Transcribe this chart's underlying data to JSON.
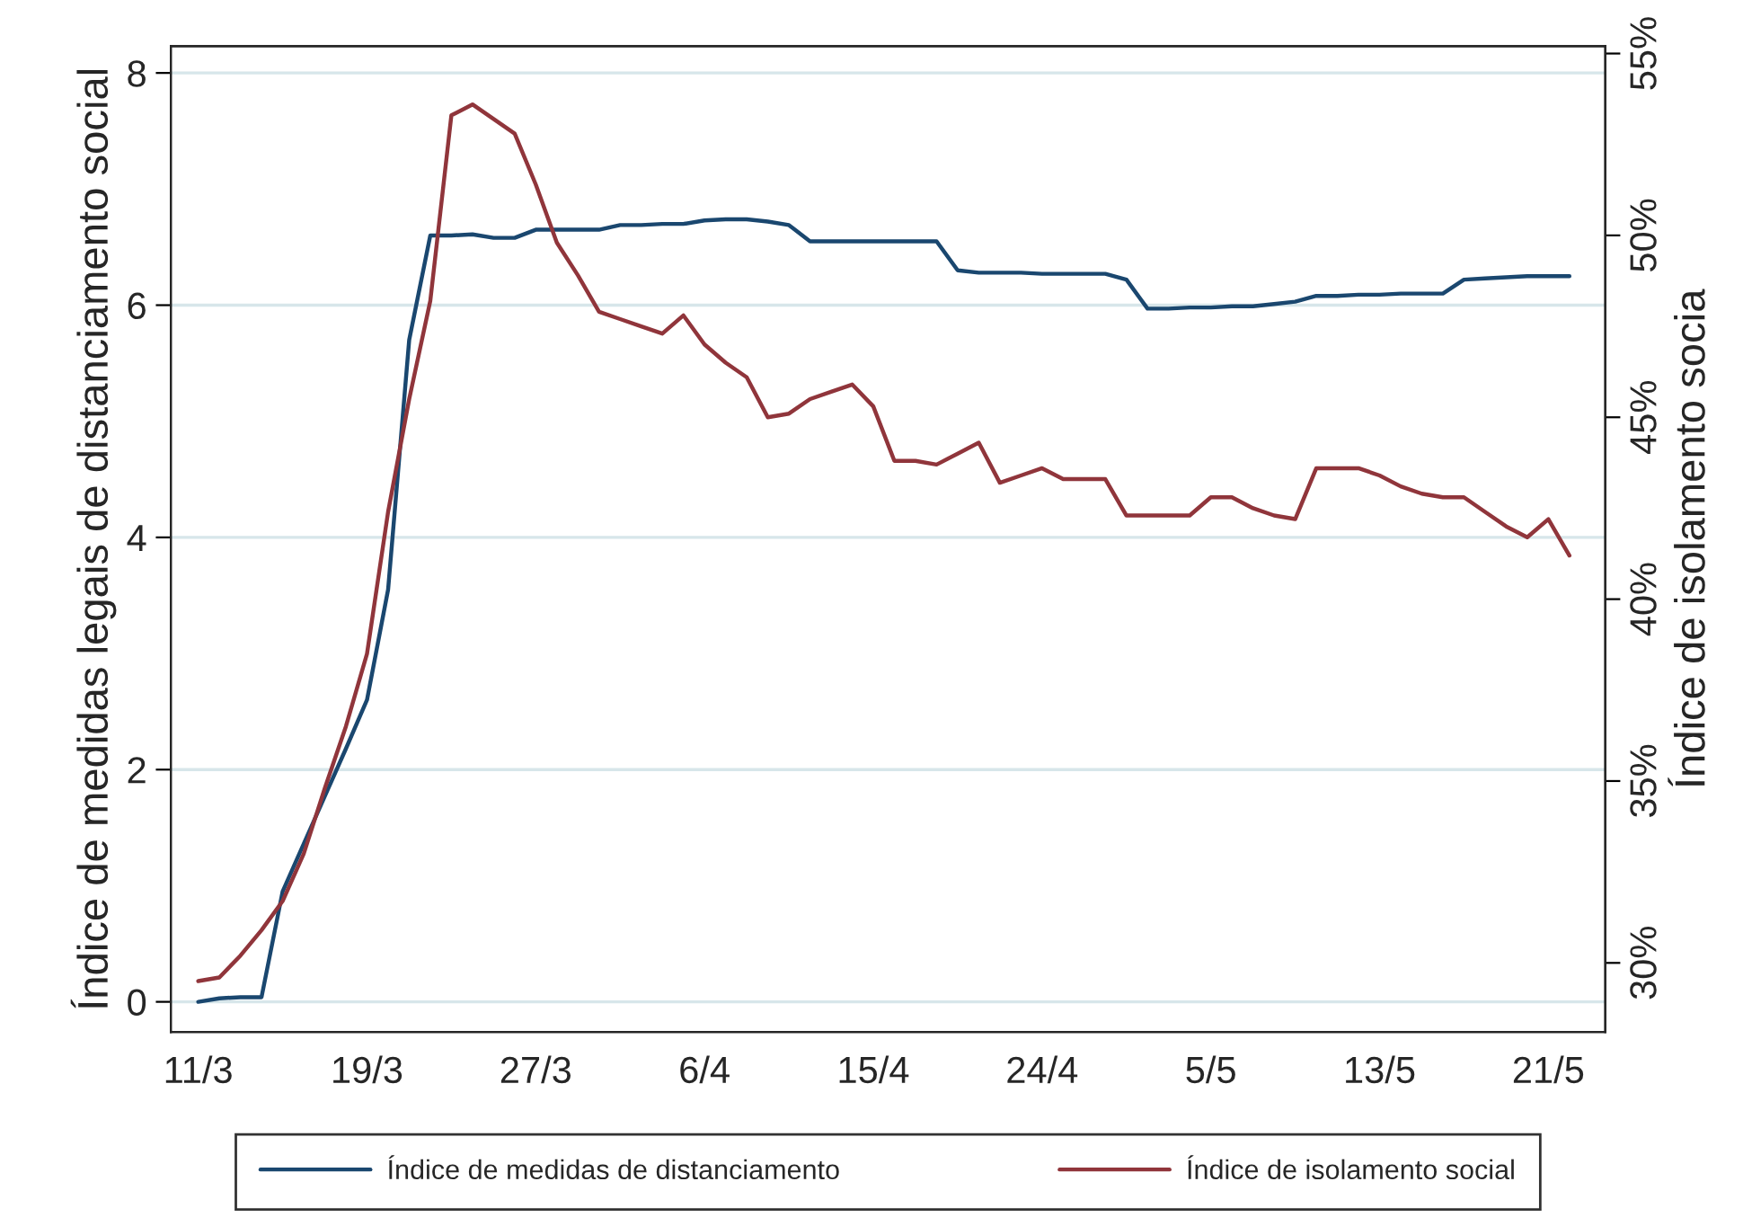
{
  "chart_data": {
    "type": "line",
    "ylabel": "Índice de medidas legais de distanciamento social",
    "y2label": "Índice de isolamento socia",
    "categories": [
      "11/3",
      null,
      null,
      null,
      null,
      null,
      null,
      null,
      "19/3",
      null,
      null,
      null,
      null,
      null,
      null,
      null,
      "27/3",
      null,
      null,
      null,
      null,
      null,
      null,
      null,
      "6/4",
      null,
      null,
      null,
      null,
      null,
      null,
      null,
      "15/4",
      null,
      null,
      null,
      null,
      null,
      null,
      null,
      "24/4",
      null,
      null,
      null,
      null,
      null,
      null,
      null,
      "5/5",
      null,
      null,
      null,
      null,
      null,
      null,
      null,
      "13/5",
      null,
      null,
      null,
      null,
      null,
      null,
      null,
      "21/5",
      null
    ],
    "ylim": [
      -0.26,
      8.23
    ],
    "yticks": [
      0,
      2,
      4,
      6,
      8
    ],
    "y2lim": [
      28.1,
      55.2
    ],
    "y2ticks": [
      {
        "value": 30,
        "label": "30%"
      },
      {
        "value": 35,
        "label": "35%"
      },
      {
        "value": 40,
        "label": "40%"
      },
      {
        "value": 45,
        "label": "45%"
      },
      {
        "value": 50,
        "label": "50%"
      },
      {
        "value": 55,
        "label": "55%"
      }
    ],
    "grid": "y",
    "legend": "bottom",
    "line_style": "solid",
    "marker": "none",
    "series": [
      {
        "name": "Índice de medidas de distanciamento",
        "color": "#1a476f",
        "values": [
          0,
          0.03,
          0.04,
          0.04,
          0.95,
          1.36,
          1.77,
          2.18,
          2.6,
          3.55,
          5.7,
          6.6,
          6.6,
          6.61,
          6.58,
          6.58,
          6.65,
          6.65,
          6.65,
          6.65,
          6.69,
          6.69,
          6.7,
          6.7,
          6.73,
          6.74,
          6.74,
          6.72,
          6.69,
          6.55,
          6.55,
          6.55,
          6.55,
          6.55,
          6.55,
          6.55,
          6.3,
          6.28,
          6.28,
          6.28,
          6.27,
          6.27,
          6.27,
          6.27,
          6.22,
          5.97,
          5.97,
          5.98,
          5.98,
          5.99,
          5.99,
          6.01,
          6.03,
          6.08,
          6.08,
          6.09,
          6.09,
          6.1,
          6.1,
          6.1,
          6.22,
          6.23,
          6.24,
          6.25,
          6.25,
          6.25
        ]
      },
      {
        "name": "Índice de isolamento social",
        "color": "#90353b",
        "axis": "y2",
        "values": [
          29.5,
          29.6,
          30.2,
          30.9,
          31.7,
          33.0,
          34.8,
          36.5,
          38.5,
          42.4,
          45.5,
          48.2,
          53.3,
          53.6,
          53.2,
          52.8,
          51.4,
          49.8,
          48.9,
          47.9,
          47.7,
          47.5,
          47.3,
          47.8,
          47.0,
          46.5,
          46.1,
          45.0,
          45.1,
          45.5,
          45.7,
          45.9,
          45.3,
          43.8,
          43.8,
          43.7,
          44.0,
          44.3,
          43.2,
          43.4,
          43.6,
          43.3,
          43.3,
          43.3,
          42.3,
          42.3,
          42.3,
          42.3,
          42.8,
          42.8,
          42.5,
          42.3,
          42.2,
          43.6,
          43.6,
          43.6,
          43.4,
          43.1,
          42.9,
          42.8,
          42.8,
          42.4,
          42.0,
          41.7,
          42.2,
          41.2
        ]
      }
    ]
  }
}
